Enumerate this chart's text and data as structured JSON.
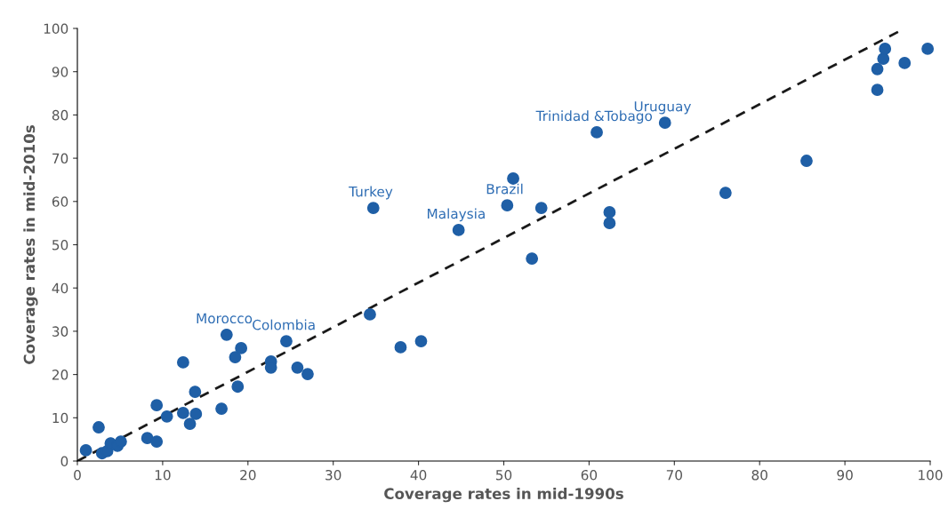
{
  "chart_data": {
    "type": "scatter",
    "xlabel": "Coverage rates in mid-1990s",
    "ylabel": "Coverage rates in mid-2010s",
    "xlim": [
      0,
      100
    ],
    "ylim": [
      0,
      100
    ],
    "xticks": [
      0,
      10,
      20,
      30,
      40,
      50,
      60,
      70,
      80,
      90,
      100
    ],
    "yticks": [
      0,
      10,
      20,
      30,
      40,
      50,
      60,
      70,
      80,
      90,
      100
    ],
    "grid": false,
    "legend": false,
    "marker": "circle",
    "series": [
      {
        "type": "scatter",
        "color": "#1f5fa6",
        "x": [
          1.0,
          2.5,
          2.9,
          3.5,
          3.9,
          4.7,
          5.1,
          8.2,
          9.3,
          9.3,
          10.5,
          12.4,
          12.4,
          13.2,
          13.8,
          13.9,
          16.9,
          17.5,
          18.5,
          18.8,
          19.2,
          22.7,
          22.7,
          24.5,
          25.8,
          27.0,
          34.3,
          34.7,
          37.9,
          40.3,
          44.7,
          50.4,
          51.1,
          53.3,
          54.4,
          60.9,
          62.4,
          62.4,
          68.9,
          76.0,
          85.5,
          93.8,
          93.8,
          94.5,
          94.7,
          97.0,
          99.7
        ],
        "values": [
          2.5,
          7.8,
          1.8,
          2.3,
          4.1,
          3.5,
          4.5,
          5.3,
          12.9,
          4.5,
          10.3,
          22.8,
          11.1,
          8.6,
          16.0,
          10.9,
          12.1,
          29.2,
          24.0,
          17.2,
          26.1,
          23.0,
          21.6,
          27.7,
          21.6,
          20.1,
          33.9,
          58.5,
          26.3,
          27.7,
          53.4,
          59.1,
          65.3,
          46.8,
          58.5,
          76.0,
          57.5,
          55.0,
          78.2,
          62.0,
          69.4,
          85.8,
          90.6,
          93.0,
          95.3,
          92.0,
          95.3
        ]
      },
      {
        "type": "line",
        "color": "#1a1a1a",
        "line_style": "dashed",
        "marker": "none",
        "x": [
          0,
          97
        ],
        "values": [
          0,
          100
        ]
      }
    ],
    "annotations": [
      {
        "text": "Morocco",
        "x": 17.5,
        "y": 29.2
      },
      {
        "text": "Colombia",
        "x": 24.5,
        "y": 27.7
      },
      {
        "text": "Turkey",
        "x": 34.7,
        "y": 58.5
      },
      {
        "text": "Malaysia",
        "x": 44.7,
        "y": 53.4
      },
      {
        "text": "Brazil",
        "x": 50.4,
        "y": 59.1
      },
      {
        "text": "Trinidad &Tobago",
        "x": 60.9,
        "y": 76.0
      },
      {
        "text": "Uruguay",
        "x": 68.9,
        "y": 78.2
      }
    ]
  }
}
